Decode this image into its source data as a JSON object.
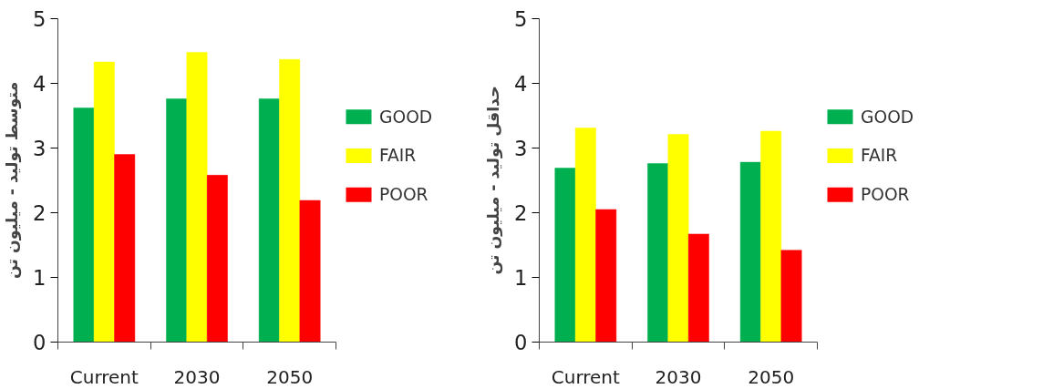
{
  "chart_data": [
    {
      "type": "bar",
      "ylabel": "متوسط تولید - میلیون تن",
      "categories": [
        "Current",
        "2030",
        "2050"
      ],
      "ylim": [
        0,
        5
      ],
      "yticks": [
        0,
        1,
        2,
        3,
        4,
        5
      ],
      "grid": false,
      "legend": "right",
      "series": [
        {
          "name": "GOOD",
          "color": "#00b050",
          "values": [
            3.62,
            3.76,
            3.76
          ]
        },
        {
          "name": "FAIR",
          "color": "#ffff00",
          "values": [
            4.33,
            4.48,
            4.37
          ]
        },
        {
          "name": "POOR",
          "color": "#ff0000",
          "values": [
            2.9,
            2.58,
            2.19
          ]
        }
      ]
    },
    {
      "type": "bar",
      "ylabel": "حداقل تولید - میلیون تن",
      "categories": [
        "Current",
        "2030",
        "2050"
      ],
      "ylim": [
        0,
        5
      ],
      "yticks": [
        0,
        1,
        2,
        3,
        4,
        5
      ],
      "grid": false,
      "legend": "right",
      "series": [
        {
          "name": "GOOD",
          "color": "#00b050",
          "values": [
            2.69,
            2.76,
            2.78
          ]
        },
        {
          "name": "FAIR",
          "color": "#ffff00",
          "values": [
            3.31,
            3.21,
            3.26
          ]
        },
        {
          "name": "POOR",
          "color": "#ff0000",
          "values": [
            2.05,
            1.67,
            1.42
          ]
        }
      ]
    }
  ]
}
